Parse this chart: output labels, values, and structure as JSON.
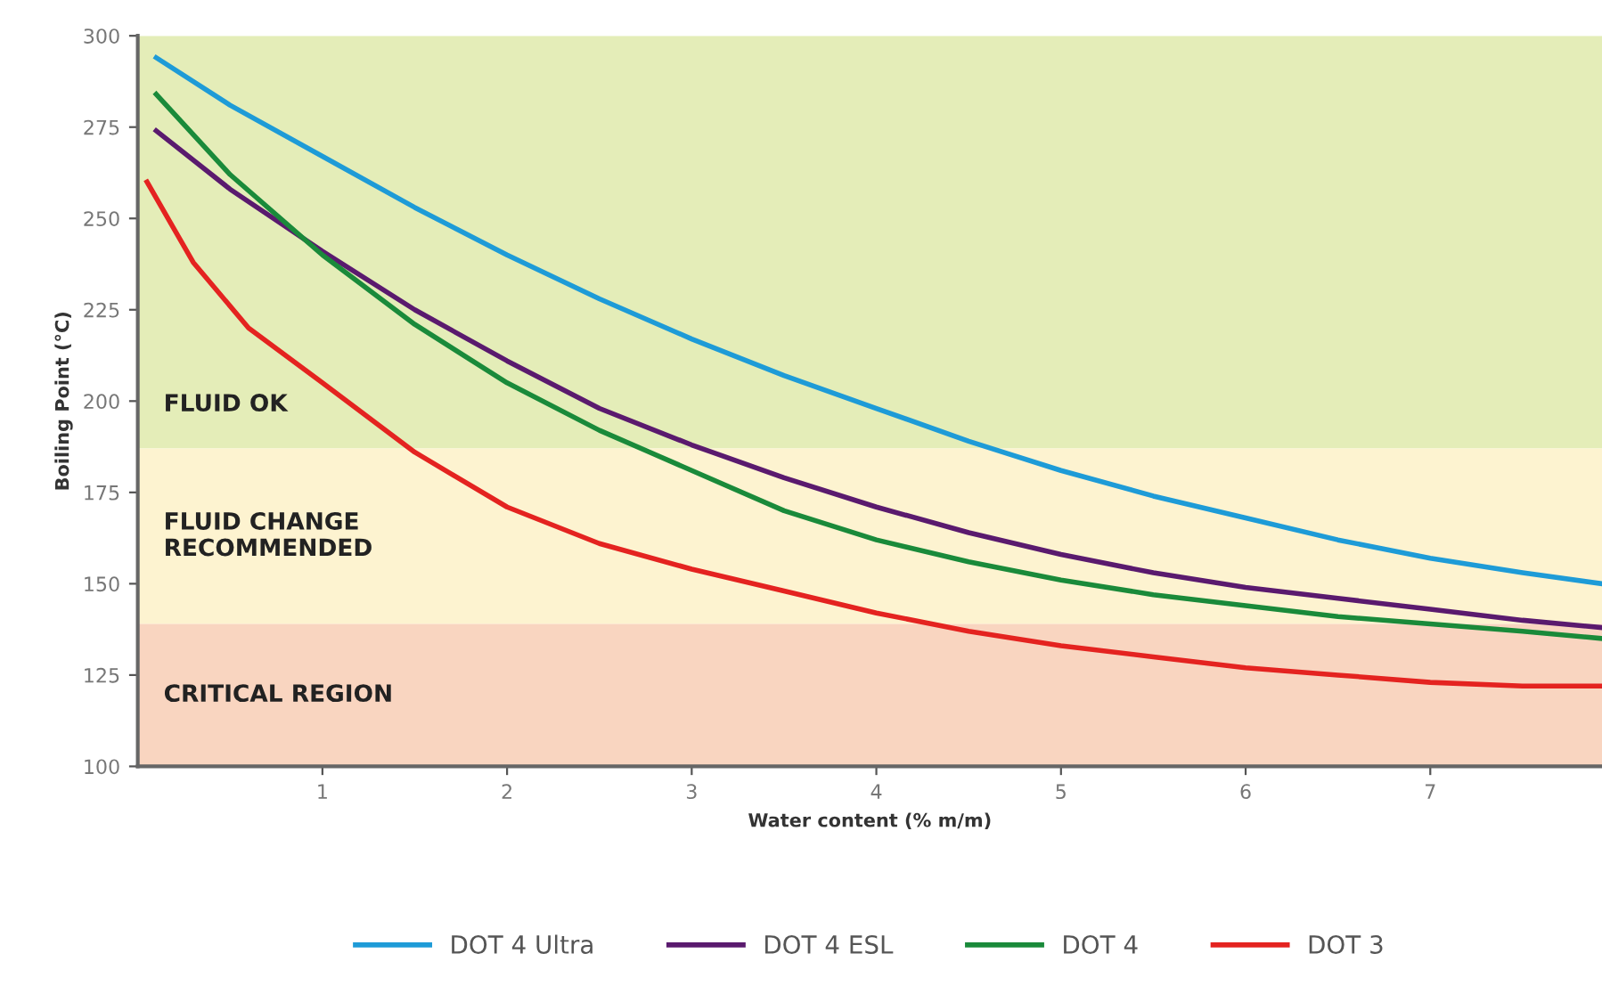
{
  "chart_data": {
    "type": "line",
    "xlabel": "Water content (% m/m)",
    "ylabel": "Boiling Point (°C)",
    "xlim": [
      0,
      7.93
    ],
    "ylim": [
      100,
      300
    ],
    "xticks": [
      1,
      2,
      3,
      4,
      5,
      6,
      7
    ],
    "yticks": [
      100,
      125,
      150,
      175,
      200,
      225,
      250,
      275,
      300
    ],
    "grid": false,
    "legend": "bottom",
    "line_style": "solid",
    "marker": "none",
    "bands": [
      {
        "axis": "y",
        "from": 187,
        "to": 300,
        "label": "FLUID OK",
        "color": "#e4edb8"
      },
      {
        "axis": "y",
        "from": 139,
        "to": 187,
        "label": "FLUID CHANGE\nRECOMMENDED",
        "color": "#fdf3d0"
      },
      {
        "axis": "y",
        "from": 100,
        "to": 139,
        "label": "CRITICAL REGION",
        "color": "#f9d5c0"
      }
    ],
    "series": [
      {
        "name": "DOT 4 Ultra",
        "color": "#1e9bd7",
        "x": [
          0.1,
          0.5,
          1,
          1.5,
          2,
          2.5,
          3,
          3.5,
          4,
          4.5,
          5,
          5.5,
          6,
          6.5,
          7,
          7.5,
          7.93
        ],
        "values": [
          294,
          281,
          267,
          253,
          240,
          228,
          217,
          207,
          198,
          189,
          181,
          174,
          168,
          162,
          157,
          153,
          150
        ]
      },
      {
        "name": "DOT 4 ESL",
        "color": "#5a1a6e",
        "x": [
          0.1,
          0.5,
          1,
          1.5,
          2,
          2.5,
          3,
          3.5,
          4,
          4.5,
          5,
          5.5,
          6,
          6.5,
          7,
          7.5,
          7.93
        ],
        "values": [
          274,
          258,
          241,
          225,
          211,
          198,
          188,
          179,
          171,
          164,
          158,
          153,
          149,
          146,
          143,
          140,
          138
        ]
      },
      {
        "name": "DOT 4",
        "color": "#1a8a3a",
        "x": [
          0.1,
          0.5,
          1,
          1.5,
          2,
          2.5,
          3,
          3.5,
          4,
          4.5,
          5,
          5.5,
          6,
          6.5,
          7,
          7.5,
          7.93
        ],
        "values": [
          284,
          262,
          240,
          221,
          205,
          192,
          181,
          170,
          162,
          156,
          151,
          147,
          144,
          141,
          139,
          137,
          135
        ]
      },
      {
        "name": "DOT 3",
        "color": "#e42320",
        "x": [
          0.05,
          0.3,
          0.6,
          1,
          1.5,
          2,
          2.5,
          3,
          3.5,
          4,
          4.5,
          5,
          5.5,
          6,
          6.5,
          7,
          7.5,
          7.93
        ],
        "values": [
          260,
          238,
          220,
          205,
          186,
          171,
          161,
          154,
          148,
          142,
          137,
          133,
          130,
          127,
          125,
          123,
          122,
          122
        ]
      }
    ]
  }
}
